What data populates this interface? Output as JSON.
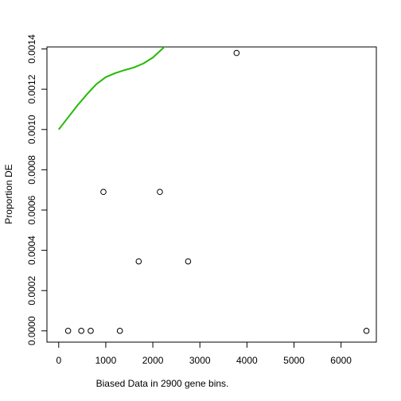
{
  "chart_data": {
    "type": "scatter",
    "title": "",
    "xlabel": "Biased Data in 2900 gene bins.",
    "ylabel": "Proportion DE",
    "xlim": [
      -250,
      6750
    ],
    "ylim": [
      -5.6e-05,
      0.00141
    ],
    "x_ticks": [
      0,
      1000,
      2000,
      3000,
      4000,
      5000,
      6000
    ],
    "y_ticks": [
      0.0,
      0.0002,
      0.0004,
      0.0006,
      0.0008,
      0.001,
      0.0012,
      0.0014
    ],
    "x_tick_labels": [
      "0",
      "1000",
      "2000",
      "3000",
      "4000",
      "5000",
      "6000"
    ],
    "y_tick_labels": [
      "0.0000",
      "0.0002",
      "0.0004",
      "0.0006",
      "0.0008",
      "0.0010",
      "0.0012",
      "0.0014"
    ],
    "grid": false,
    "legend": "none",
    "series": [
      {
        "type": "scatter",
        "marker": "open-circle",
        "color": "#000000",
        "x": [
          200,
          480,
          680,
          950,
          1300,
          1700,
          2150,
          2750,
          3780,
          6540
        ],
        "y": [
          0.0,
          0.0,
          0.0,
          0.00069,
          0.0,
          0.000345,
          0.00069,
          0.000345,
          0.00138,
          0.0
        ]
      },
      {
        "type": "line",
        "color": "#22bb00",
        "x": [
          0,
          200,
          400,
          600,
          800,
          1000,
          1200,
          1400,
          1600,
          1800,
          2000,
          2200,
          2380
        ],
        "y": [
          0.001,
          0.00106,
          0.00112,
          0.001175,
          0.001225,
          0.00126,
          0.00128,
          0.001295,
          0.001308,
          0.001328,
          0.001357,
          0.0014,
          0.00144
        ]
      }
    ]
  }
}
